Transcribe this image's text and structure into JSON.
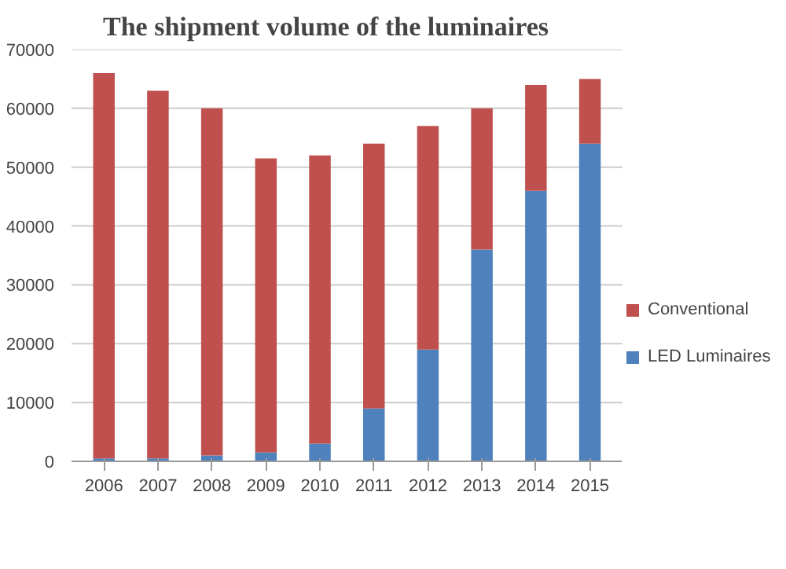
{
  "chart_data": {
    "type": "bar",
    "title": "The shipment volume of the luminaires",
    "stacked": true,
    "categories": [
      "2006",
      "2007",
      "2008",
      "2009",
      "2010",
      "2011",
      "2012",
      "2013",
      "2014",
      "2015"
    ],
    "series": [
      {
        "name": "LED Luminaires",
        "color": "#4f81bd",
        "values": [
          500,
          500,
          1000,
          1500,
          3000,
          9000,
          19000,
          36000,
          46000,
          54000
        ]
      },
      {
        "name": "Conventional",
        "color": "#c0504d",
        "values": [
          65500,
          62500,
          59000,
          50000,
          49000,
          45000,
          38000,
          24000,
          18000,
          11000
        ]
      }
    ],
    "ylim": [
      0,
      70000
    ],
    "yticks": [
      0,
      10000,
      20000,
      30000,
      40000,
      50000,
      60000,
      70000
    ],
    "grid": "y",
    "legend": "right"
  }
}
